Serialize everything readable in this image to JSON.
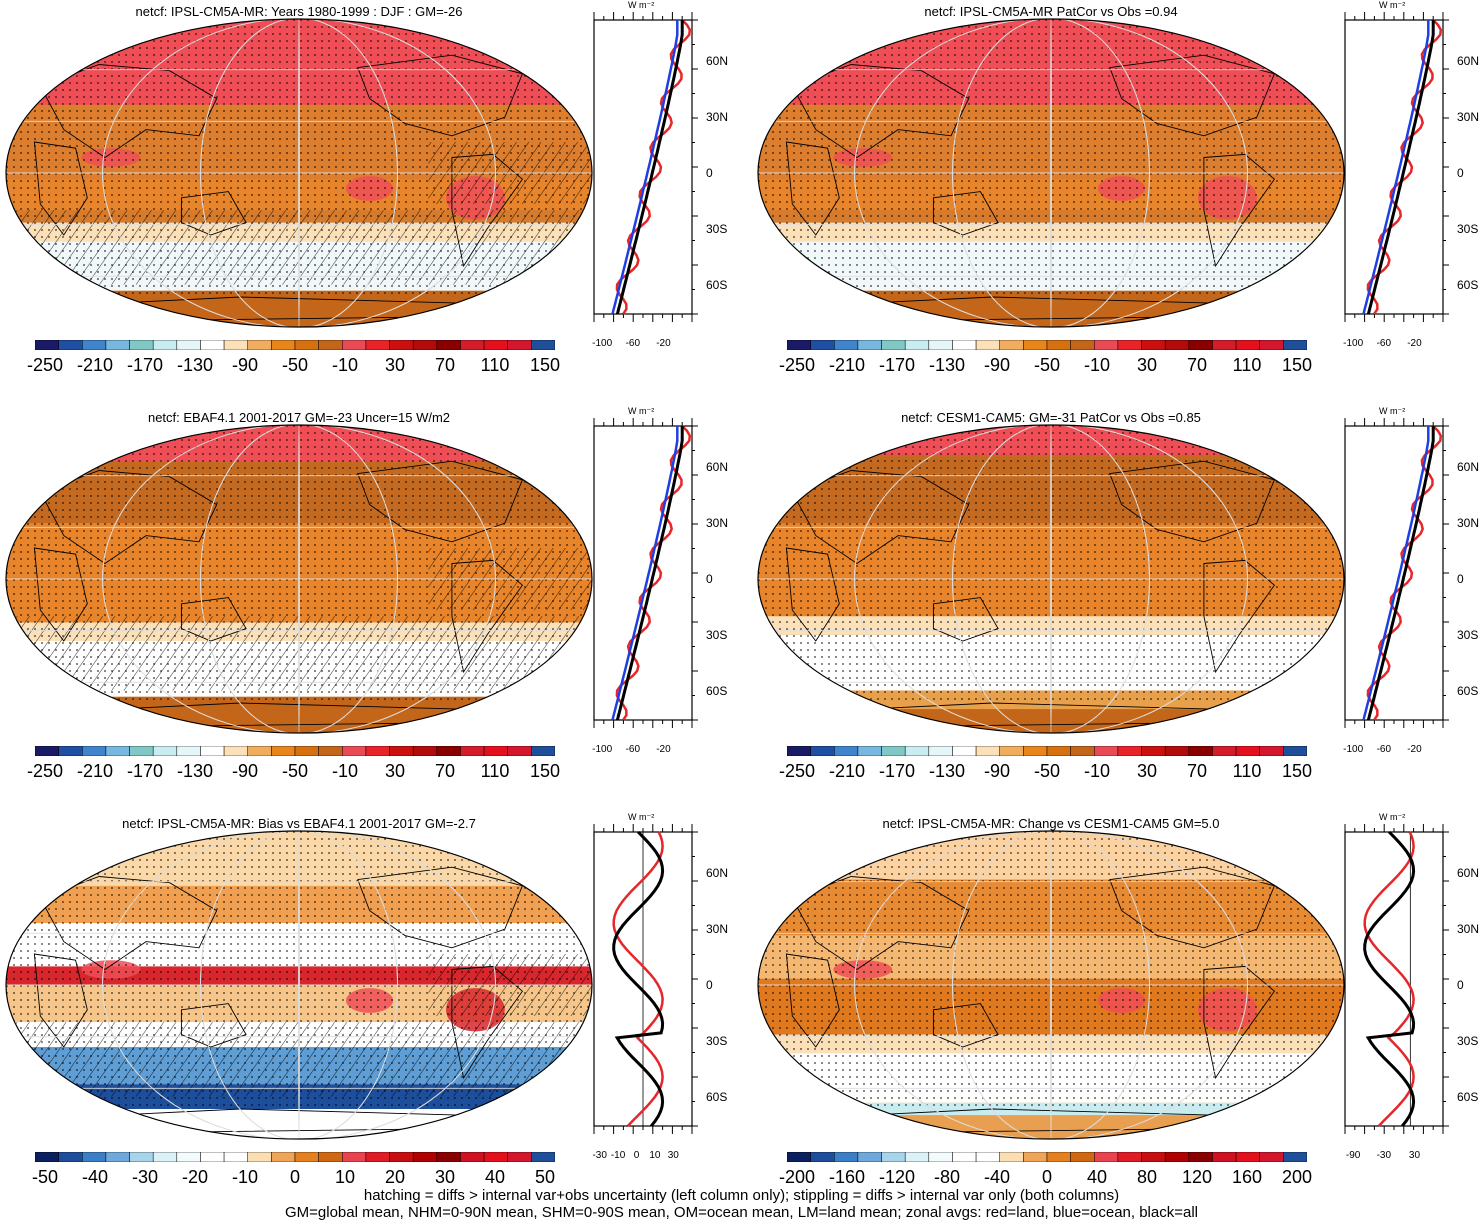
{
  "panels": [
    {
      "title": "netcf: IPSL-CM5A-MR: Years 1980-1999 : DJF : GM=-26",
      "theme": "abs",
      "hatch": true,
      "palette": "abs",
      "colorbar_labels": [
        "-250",
        "-210",
        "-170",
        "-130",
        "-90",
        "-50",
        "-10",
        "30",
        "70",
        "110",
        "150"
      ],
      "zonal_ticks": [
        "-100",
        "-60",
        "-20"
      ],
      "zonal_range": [
        -110,
        0
      ],
      "zonal_zero": false
    },
    {
      "title": "netcf: IPSL-CM5A-MR PatCor vs Obs =0.94",
      "theme": "abs",
      "hatch": false,
      "palette": "abs",
      "colorbar_labels": [
        "-250",
        "-210",
        "-170",
        "-130",
        "-90",
        "-50",
        "-10",
        "30",
        "70",
        "110",
        "150"
      ],
      "zonal_ticks": [
        "-100",
        "-60",
        "-20"
      ],
      "zonal_range": [
        -110,
        0
      ],
      "zonal_zero": false
    },
    {
      "title": "netcf: EBAF4.1 2001-2017 GM=-23 Uncer=15 W/m2",
      "theme": "obs",
      "hatch": true,
      "palette": "abs",
      "colorbar_labels": [
        "-250",
        "-210",
        "-170",
        "-130",
        "-90",
        "-50",
        "-10",
        "30",
        "70",
        "110",
        "150"
      ],
      "zonal_ticks": [
        "-100",
        "-60",
        "-20"
      ],
      "zonal_range": [
        -110,
        0
      ],
      "zonal_zero": false
    },
    {
      "title": "netcf: CESM1-CAM5: GM=-31 PatCor vs Obs =0.85",
      "theme": "cesm",
      "hatch": false,
      "palette": "abs",
      "colorbar_labels": [
        "-250",
        "-210",
        "-170",
        "-130",
        "-90",
        "-50",
        "-10",
        "30",
        "70",
        "110",
        "150"
      ],
      "zonal_ticks": [
        "-100",
        "-60",
        "-20"
      ],
      "zonal_range": [
        -110,
        0
      ],
      "zonal_zero": false
    },
    {
      "title": "netcf: IPSL-CM5A-MR: Bias vs EBAF4.1 2001-2017 GM=-2.7",
      "theme": "bias",
      "hatch": true,
      "palette": "diff",
      "colorbar_labels": [
        "-50",
        "-40",
        "-30",
        "-20",
        "-10",
        "0",
        "10",
        "20",
        "30",
        "40",
        "50"
      ],
      "zonal_ticks": [
        "-30",
        "-10",
        "0",
        "10",
        "30"
      ],
      "zonal_range": [
        -30,
        30
      ],
      "zonal_zero": true
    },
    {
      "title": "netcf: IPSL-CM5A-MR: Change vs CESM1-CAM5 GM=5.0",
      "theme": "change",
      "hatch": false,
      "palette": "diff",
      "colorbar_labels": [
        "-200",
        "-160",
        "-120",
        "-80",
        "-40",
        "0",
        "40",
        "80",
        "120",
        "160",
        "200"
      ],
      "zonal_ticks": [
        "-90",
        "-30",
        "30"
      ],
      "zonal_range": [
        -100,
        50
      ],
      "zonal_zero": true
    }
  ],
  "lat_labels": [
    "60N",
    "30N",
    "0",
    "30S",
    "60S"
  ],
  "zonal_unit": "W m⁻²",
  "footnote": {
    "line1": "hatching = diffs > internal var+obs uncertainty (left column only); stippling = diffs > internal var only (both columns)",
    "line2": "GM=global mean, NHM=0-90N mean, SHM=0-90S mean, OM=ocean mean, LM=land mean; zonal avgs: red=land, blue=ocean, black=all"
  },
  "colors": {
    "abs_palette": [
      "#1a1a66",
      "#1f4fa3",
      "#3f84cc",
      "#76b8e0",
      "#7fc8c6",
      "#c8ecf0",
      "#e4f6f8",
      "#ffffff",
      "#fbe0b8",
      "#f1ad5f",
      "#e8861c",
      "#d77010",
      "#c4661a",
      "#e94b56",
      "#e8232a",
      "#cc1010",
      "#b30a0a",
      "#8a0000",
      "#d41d2a",
      "#e5101e",
      "#d4162e",
      "#1f4f9a"
    ],
    "diff_palette": [
      "#0c1f5e",
      "#1d4e9b",
      "#3b7fc6",
      "#6fa8da",
      "#a8d4ea",
      "#dbf1f7",
      "#f4fbfd",
      "#ffffff",
      "#ffffff",
      "#fbdfb2",
      "#eea55a",
      "#e67f20",
      "#cf6810",
      "#e8434f",
      "#e11b25",
      "#c80d10",
      "#b00000",
      "#8a0000",
      "#cf1122",
      "#e5101e",
      "#d3152d",
      "#1f4f9a"
    ],
    "land": "#e5262a",
    "ocean": "#1f3fe0",
    "all": "#000000"
  }
}
